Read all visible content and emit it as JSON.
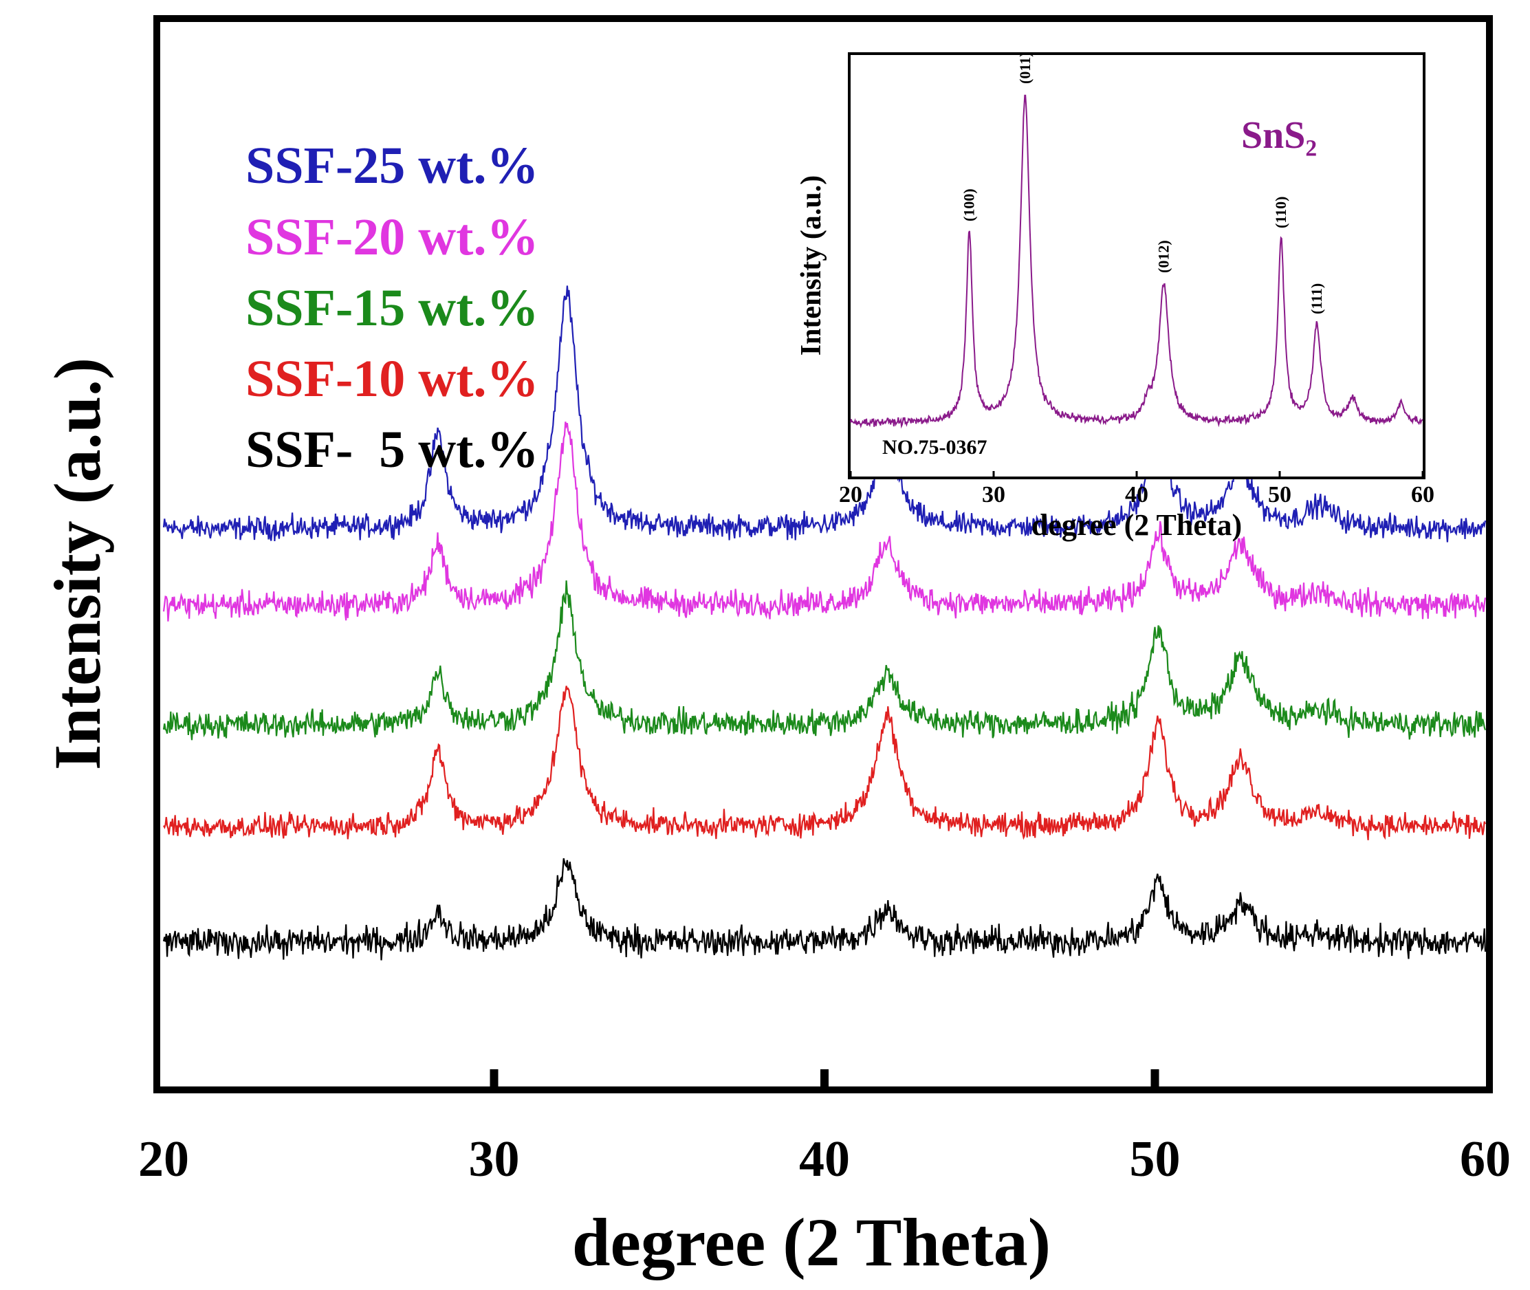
{
  "chart_data": [
    {
      "type": "line",
      "title": "",
      "xlabel": "degree (2 Theta)",
      "ylabel": "Intensity (a.u.)",
      "xlim": [
        20,
        60
      ],
      "xticks": [
        "20",
        "30",
        "40",
        "50",
        "60"
      ],
      "yticks": [],
      "grid": false,
      "legend": "top-left",
      "peaks_2theta": [
        28.3,
        32.2,
        41.9,
        50.1,
        52.6,
        55.0
      ],
      "series": [
        {
          "name": "SSF-25 wt.%",
          "color": "#1f1fb4",
          "baseline": 1.3,
          "noise": 0.04,
          "peak_heights": [
            0.22,
            0.55,
            0.2,
            0.26,
            0.14,
            0.05
          ]
        },
        {
          "name": "SSF-20 wt.%",
          "color": "#e036e0",
          "baseline": 1.12,
          "noise": 0.045,
          "peak_heights": [
            0.14,
            0.42,
            0.14,
            0.16,
            0.14,
            0.03
          ]
        },
        {
          "name": "SSF-15 wt.%",
          "color": "#1b8a1b",
          "baseline": 0.84,
          "noise": 0.045,
          "peak_heights": [
            0.12,
            0.3,
            0.12,
            0.22,
            0.15,
            0.03
          ]
        },
        {
          "name": "SSF-10 wt.%",
          "color": "#e02020",
          "baseline": 0.6,
          "noise": 0.04,
          "peak_heights": [
            0.18,
            0.33,
            0.26,
            0.24,
            0.15,
            0.03
          ]
        },
        {
          "name": "SSF-  5 wt.%",
          "color": "#000000",
          "baseline": 0.33,
          "noise": 0.05,
          "peak_heights": [
            0.07,
            0.18,
            0.08,
            0.14,
            0.09,
            0.02
          ]
        }
      ]
    },
    {
      "type": "line",
      "title": "SnS₂",
      "xlabel": "degree (2 Theta)",
      "ylabel": "Intensity (a.u.)",
      "xlim": [
        20,
        60
      ],
      "xticks": [
        "20",
        "30",
        "40",
        "50",
        "60"
      ],
      "yticks": [],
      "grid": false,
      "annotation": "NO.75-0367",
      "color": "#8a1a8a",
      "peaks": [
        {
          "x": 28.3,
          "label": "(100)",
          "height": 0.55
        },
        {
          "x": 32.2,
          "label": "(011)",
          "height": 0.95
        },
        {
          "x": 41.9,
          "label": "(012)",
          "height": 0.4
        },
        {
          "x": 50.1,
          "label": "(110)",
          "height": 0.53
        },
        {
          "x": 52.6,
          "label": "(111)",
          "height": 0.28
        }
      ]
    }
  ]
}
